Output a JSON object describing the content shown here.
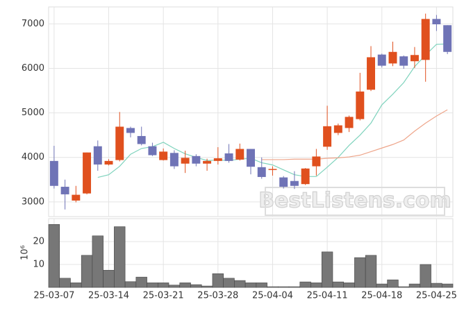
{
  "chart_data": [
    {
      "type": "candlestick",
      "up_color": "#e0501e",
      "down_color": "#6f73b6",
      "open": [
        3920,
        3340,
        3030,
        3190,
        4250,
        3840,
        3940,
        4660,
        4480,
        4250,
        3940,
        4100,
        3860,
        4030,
        3860,
        3920,
        4090,
        3950,
        4190,
        3780,
        3720,
        3550,
        3470,
        3400,
        3800,
        4240,
        4550,
        4660,
        4860,
        5520,
        6310,
        6110,
        6270,
        6160,
        6190,
        7110,
        6970
      ],
      "high": [
        4260,
        3500,
        3360,
        4110,
        4380,
        3960,
        5020,
        4690,
        4690,
        4330,
        4200,
        4160,
        4150,
        4070,
        3970,
        4230,
        4300,
        4310,
        4190,
        4000,
        3800,
        3580,
        3690,
        3760,
        4190,
        5160,
        4760,
        4940,
        5900,
        6500,
        6330,
        6600,
        6290,
        6480,
        7230,
        7200,
        6970
      ],
      "low": [
        3300,
        2830,
        2990,
        3170,
        3700,
        3820,
        3910,
        4450,
        4270,
        4030,
        3930,
        3740,
        3650,
        3800,
        3700,
        3840,
        3880,
        3930,
        3620,
        3520,
        3590,
        3300,
        3290,
        3380,
        3590,
        4170,
        4500,
        4570,
        4830,
        5490,
        6020,
        6050,
        5990,
        6010,
        5700,
        6840,
        6320
      ],
      "close": [
        3360,
        3170,
        3160,
        4110,
        3840,
        3920,
        4690,
        4550,
        4300,
        4050,
        4130,
        3800,
        3990,
        3860,
        3920,
        3980,
        3920,
        4190,
        3790,
        3560,
        3740,
        3340,
        3360,
        3750,
        4020,
        4700,
        4720,
        4910,
        5480,
        6250,
        6060,
        6370,
        6060,
        6300,
        7110,
        6990,
        6370
      ],
      "series": [
        {
          "color": "#7fd3bd",
          "values": [
            null,
            null,
            null,
            null,
            3550,
            3610,
            3800,
            4070,
            4200,
            4240,
            4340,
            4200,
            4080,
            4000,
            3930,
            3940,
            3930,
            3960,
            3980,
            3880,
            3830,
            3720,
            3610,
            3570,
            3570,
            3780,
            4000,
            4270,
            4500,
            4770,
            5180,
            5420,
            5680,
            6040,
            6300,
            6540,
            6550
          ]
        },
        {
          "color": "#eea58a",
          "values": [
            null,
            null,
            null,
            null,
            null,
            null,
            null,
            null,
            null,
            null,
            null,
            null,
            null,
            null,
            null,
            null,
            null,
            null,
            null,
            3950,
            3950,
            3950,
            3960,
            3960,
            3960,
            3980,
            3990,
            4010,
            4050,
            4130,
            4210,
            4290,
            4390,
            4590,
            4770,
            4930,
            5070
          ]
        }
      ],
      "ylim": [
        2670,
        7380
      ],
      "yticks": [
        3000,
        4000,
        5000,
        6000,
        7000
      ],
      "grid": true,
      "watermark": "BestListens.com"
    },
    {
      "type": "bar",
      "color": "#777777",
      "ylabel": "10⁶",
      "categories": [
        "25-03-07",
        null,
        null,
        null,
        null,
        "25-03-14",
        null,
        null,
        null,
        null,
        "25-03-21",
        null,
        null,
        null,
        null,
        "25-03-28",
        null,
        null,
        null,
        null,
        "25-04-04",
        null,
        null,
        null,
        null,
        "25-04-11",
        null,
        null,
        null,
        null,
        "25-04-18",
        null,
        null,
        null,
        null,
        "25-04-25",
        null
      ],
      "values": [
        27.5,
        4,
        2,
        14,
        22.5,
        7.5,
        26.5,
        2.5,
        4.5,
        2,
        2,
        1,
        2,
        1.2,
        0.6,
        6,
        4,
        3,
        2,
        2,
        0.3,
        0.3,
        0.3,
        2.4,
        2,
        15.5,
        2.4,
        2,
        13,
        14,
        1.5,
        3.3,
        0.3,
        1.5,
        10,
        1.8,
        1.5
      ],
      "ylim": [
        0,
        30
      ],
      "yticks": [
        10,
        20
      ],
      "grid": true
    }
  ]
}
